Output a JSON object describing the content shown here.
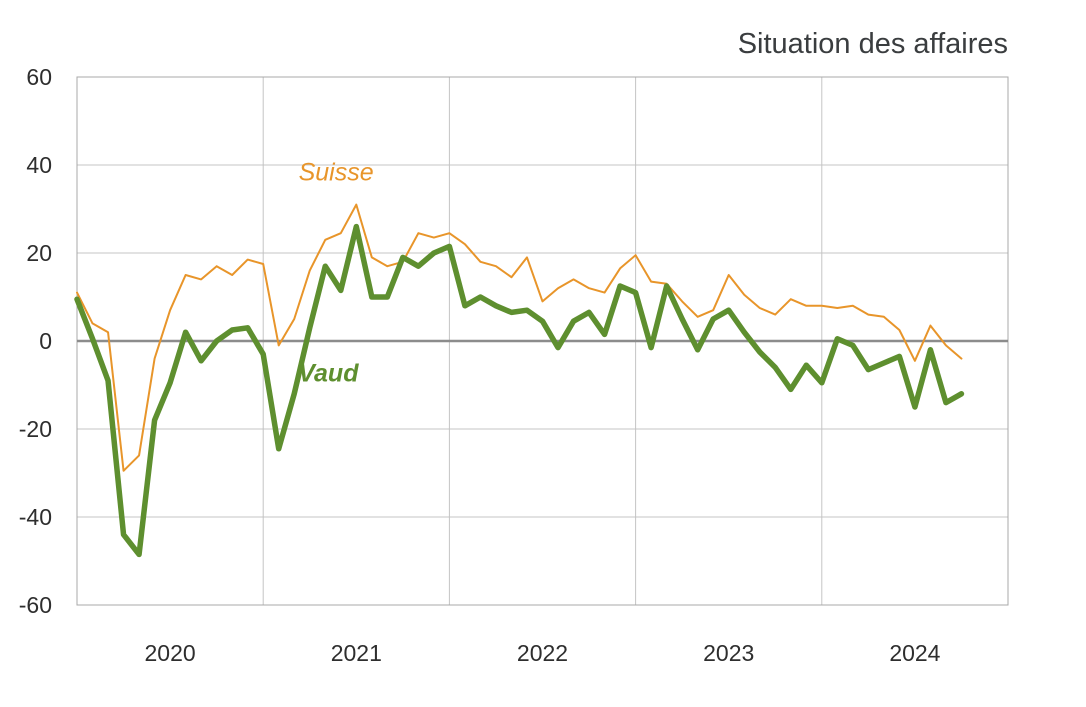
{
  "chart_data": {
    "type": "line",
    "title": "Situation des affaires",
    "xlabel": "",
    "ylabel": "",
    "xlim": [
      0,
      60
    ],
    "ylim": [
      -60,
      60
    ],
    "yticks": [
      60,
      40,
      20,
      0,
      -20,
      -40,
      -60
    ],
    "ytick_labels": [
      "60",
      "40",
      "20",
      "0",
      "-20",
      "-40",
      "-60"
    ],
    "xtick_labels": [
      {
        "label": "2020",
        "x": 6
      },
      {
        "label": "2021",
        "x": 18
      },
      {
        "label": "2022",
        "x": 30
      },
      {
        "label": "2023",
        "x": 42
      },
      {
        "label": "2024",
        "x": 54
      }
    ],
    "year_boundaries": [
      12,
      24,
      36,
      48
    ],
    "grid": true,
    "series": [
      {
        "name": "Suisse",
        "color": "#e8952a",
        "label_at": {
          "x": 16.7,
          "y": 36.5
        },
        "values": [
          11,
          4,
          2,
          -29.5,
          -26,
          -4,
          7,
          15,
          14,
          17,
          15,
          18.5,
          17.5,
          -1,
          5,
          16,
          23,
          24.5,
          31,
          19,
          17,
          18,
          24.5,
          23.5,
          24.5,
          22,
          18,
          17,
          14.5,
          19,
          9,
          12,
          14,
          12,
          11,
          16.5,
          19.5,
          13.5,
          13,
          9,
          5.5,
          7,
          15,
          10.5,
          7.5,
          6,
          9.5,
          8,
          8,
          7.5,
          8,
          6,
          5.5,
          2.5,
          -4.5,
          3.5,
          -1,
          -4
        ]
      },
      {
        "name": "Vaud",
        "color": "#5e8f2f",
        "label_at": {
          "x": 16.2,
          "y": -9.2
        },
        "values": [
          9.5,
          0.5,
          -9,
          -44,
          -48.5,
          -18,
          -9.5,
          2,
          -4.5,
          0,
          2.5,
          3,
          -3,
          -24.5,
          -12,
          3,
          17,
          11.5,
          26,
          10,
          10,
          19,
          17,
          20,
          21.5,
          8,
          10,
          8,
          6.5,
          7,
          4.5,
          -1.5,
          4.5,
          6.5,
          1.5,
          12.5,
          11,
          -1.5,
          12.5,
          5,
          -2,
          5,
          7,
          2,
          -2.5,
          -6,
          -11,
          -5.5,
          -9.5,
          0.5,
          -1,
          -6.5,
          -5,
          -3.5,
          -15,
          -2,
          -14,
          -12
        ]
      }
    ]
  }
}
